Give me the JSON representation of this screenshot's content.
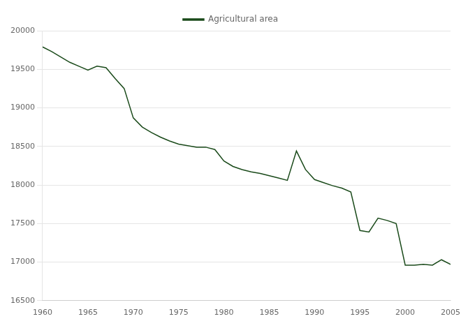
{
  "chart_data": {
    "type": "line",
    "x": [
      1960,
      1961,
      1962,
      1963,
      1964,
      1965,
      1966,
      1967,
      1968,
      1969,
      1970,
      1971,
      1972,
      1973,
      1974,
      1975,
      1976,
      1977,
      1978,
      1979,
      1980,
      1981,
      1982,
      1983,
      1984,
      1985,
      1986,
      1987,
      1988,
      1989,
      1990,
      1991,
      1992,
      1993,
      1994,
      1995,
      1996,
      1997,
      1998,
      1999,
      2000,
      2001,
      2002,
      2003,
      2004,
      2005
    ],
    "series": [
      {
        "name": "Agricultural area",
        "color": "#1a4a1a",
        "values": [
          19790,
          19730,
          19660,
          19590,
          19540,
          19490,
          19540,
          19520,
          19380,
          19250,
          18870,
          18750,
          18680,
          18620,
          18570,
          18530,
          18510,
          18490,
          18490,
          18460,
          18310,
          18240,
          18200,
          18170,
          18150,
          18120,
          18090,
          18060,
          18440,
          18200,
          18070,
          18030,
          17990,
          17960,
          17910,
          17410,
          17390,
          17570,
          17540,
          17500,
          16960,
          16960,
          16970,
          16960,
          17030,
          16970
        ]
      }
    ],
    "xlim": [
      1960,
      2005
    ],
    "ylim": [
      16500,
      20000
    ],
    "xticks": [
      1960,
      1965,
      1970,
      1975,
      1980,
      1985,
      1990,
      1995,
      2000,
      2005
    ],
    "yticks": [
      16500,
      17000,
      17500,
      18000,
      18500,
      19000,
      19500,
      20000
    ],
    "grid": "y",
    "legend": "top"
  }
}
